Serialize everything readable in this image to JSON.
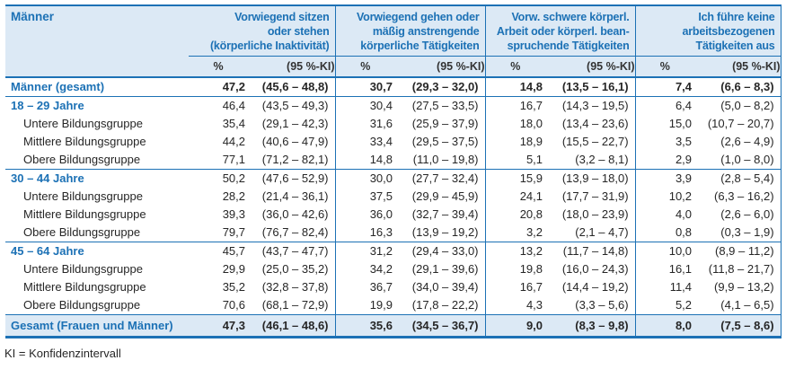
{
  "colors": {
    "accent_blue": "#1c71b5",
    "header_bg": "#dce9f5",
    "text_dark": "#262626"
  },
  "table": {
    "corner_label": "Männer",
    "col_groups": [
      {
        "title": "Vorwiegend sitzen\noder stehen\n(körperliche Inaktivität)"
      },
      {
        "title": "Vorwiegend gehen oder\nmäßig anstrengende\nkörperliche Tätigkeiten"
      },
      {
        "title": "Vorw. schwere körperl.\nArbeit oder körperl. bean-\nspruchende Tätigkeiten"
      },
      {
        "title": "Ich führe keine\narbeitsbezogenen\nTätigkeiten aus"
      }
    ],
    "subheaders": {
      "pct": "%",
      "ki": "(95 %-KI)"
    },
    "rows": [
      {
        "label": "Männer (gesamt)",
        "type": "total",
        "cells": [
          "47,2",
          "(45,6 – 48,8)",
          "30,7",
          "(29,3 – 32,0)",
          "14,8",
          "(13,5 – 16,1)",
          "7,4",
          "(6,6 – 8,3)"
        ]
      },
      {
        "label": "18 – 29 Jahre",
        "type": "section",
        "cells": [
          "46,4",
          "(43,5 – 49,3)",
          "30,4",
          "(27,5 – 33,5)",
          "16,7",
          "(14,3 – 19,5)",
          "6,4",
          "(5,0 – 8,2)"
        ]
      },
      {
        "label": "Untere Bildungsgruppe",
        "type": "sub",
        "cells": [
          "35,4",
          "(29,1 – 42,3)",
          "31,6",
          "(25,9 – 37,9)",
          "18,0",
          "(13,4 – 23,6)",
          "15,0",
          "(10,7 – 20,7)"
        ]
      },
      {
        "label": "Mittlere Bildungsgruppe",
        "type": "sub",
        "cells": [
          "44,2",
          "(40,6 – 47,9)",
          "33,4",
          "(29,5 – 37,5)",
          "18,9",
          "(15,5 – 22,7)",
          "3,5",
          "(2,6 – 4,9)"
        ]
      },
      {
        "label": "Obere Bildungsgruppe",
        "type": "sub",
        "cells": [
          "77,1",
          "(71,2 – 82,1)",
          "14,8",
          "(11,0 – 19,8)",
          "5,1",
          "(3,2 – 8,1)",
          "2,9",
          "(1,0 – 8,0)"
        ]
      },
      {
        "label": "30 – 44 Jahre",
        "type": "section",
        "cells": [
          "50,2",
          "(47,6 – 52,9)",
          "30,0",
          "(27,7 – 32,4)",
          "15,9",
          "(13,9 – 18,0)",
          "3,9",
          "(2,8 – 5,4)"
        ]
      },
      {
        "label": "Untere Bildungsgruppe",
        "type": "sub",
        "cells": [
          "28,2",
          "(21,4 – 36,1)",
          "37,5",
          "(29,9 – 45,9)",
          "24,1",
          "(17,7 – 31,9)",
          "10,2",
          "(6,3 – 16,2)"
        ]
      },
      {
        "label": "Mittlere Bildungsgruppe",
        "type": "sub",
        "cells": [
          "39,3",
          "(36,0 – 42,6)",
          "36,0",
          "(32,7 – 39,4)",
          "20,8",
          "(18,0 – 23,9)",
          "4,0",
          "(2,6 – 6,0)"
        ]
      },
      {
        "label": "Obere Bildungsgruppe",
        "type": "sub",
        "cells": [
          "79,7",
          "(76,7 – 82,4)",
          "16,3",
          "(13,9 – 19,2)",
          "3,2",
          "(2,1 – 4,7)",
          "0,8",
          "(0,3 – 1,9)"
        ]
      },
      {
        "label": "45 – 64 Jahre",
        "type": "section",
        "cells": [
          "45,7",
          "(43,7 – 47,7)",
          "31,2",
          "(29,4 – 33,0)",
          "13,2",
          "(11,7 – 14,8)",
          "10,0",
          "(8,9 – 11,2)"
        ]
      },
      {
        "label": "Untere Bildungsgruppe",
        "type": "sub",
        "cells": [
          "29,9",
          "(25,0 – 35,2)",
          "34,2",
          "(29,1 – 39,6)",
          "19,8",
          "(16,0 – 24,3)",
          "16,1",
          "(11,8 – 21,7)"
        ]
      },
      {
        "label": "Mittlere Bildungsgruppe",
        "type": "sub",
        "cells": [
          "35,2",
          "(32,8 – 37,8)",
          "36,7",
          "(34,0 – 39,4)",
          "16,7",
          "(14,4 – 19,2)",
          "11,4",
          "(9,9 – 13,2)"
        ]
      },
      {
        "label": "Obere Bildungsgruppe",
        "type": "sub",
        "cells": [
          "70,6",
          "(68,1 – 72,9)",
          "19,9",
          "(17,8 – 22,2)",
          "4,3",
          "(3,3 – 5,6)",
          "5,2",
          "(4,1 – 6,5)"
        ]
      },
      {
        "label": "Gesamt (Frauen und Männer)",
        "type": "grand",
        "cells": [
          "47,3",
          "(46,1 – 48,6)",
          "35,6",
          "(34,5 – 36,7)",
          "9,0",
          "(8,3 – 9,8)",
          "8,0",
          "(7,5 – 8,6)"
        ]
      }
    ],
    "footnote": "KI = Konfidenzintervall"
  }
}
